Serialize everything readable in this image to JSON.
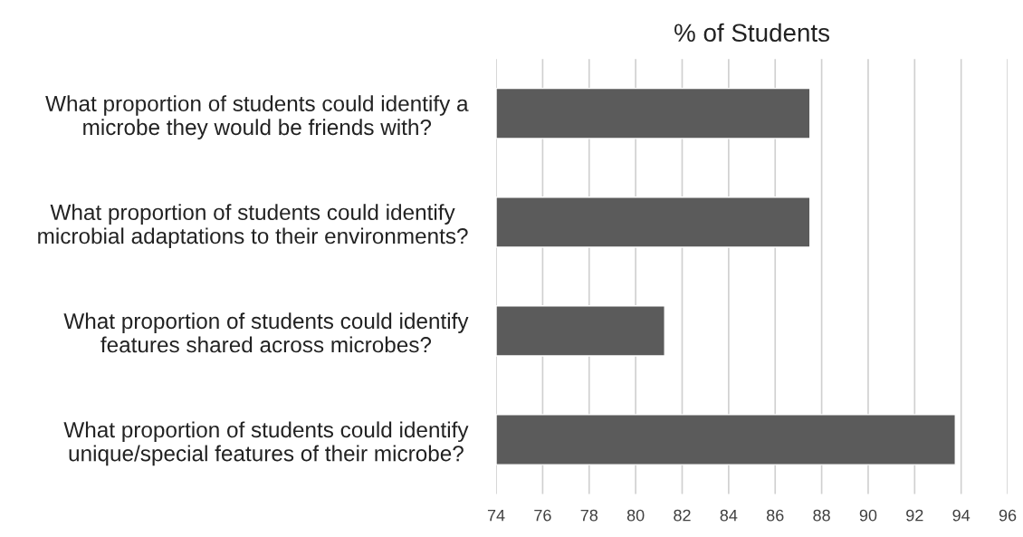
{
  "chart_data": {
    "type": "bar",
    "orientation": "horizontal",
    "title": "% of Students",
    "categories": [
      "What proportion of students could identify a\nmicrobe they would be friends with?",
      "What proportion of students could identify\nmicrobial adaptations to their environments?",
      "What proportion of students could identify\nfeatures shared across microbes?",
      "What proportion of students could identify\nunique/special features of their microbe?"
    ],
    "values": [
      87.5,
      87.5,
      81.25,
      93.75
    ],
    "color": "#5b5b5b",
    "xlim": [
      74,
      96
    ],
    "xticks": [
      74,
      76,
      78,
      80,
      82,
      84,
      86,
      88,
      90,
      92,
      94,
      96
    ],
    "grid": "x"
  }
}
